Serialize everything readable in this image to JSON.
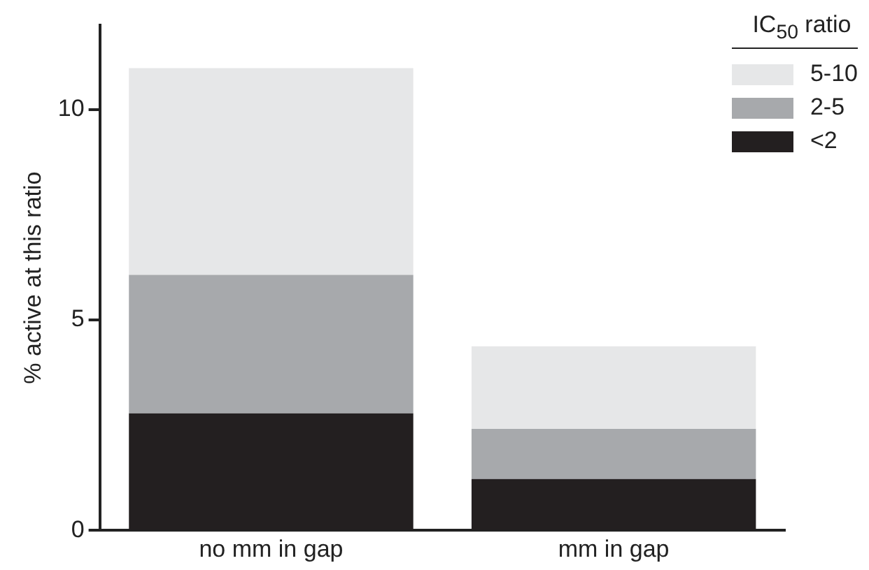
{
  "chart_data": {
    "type": "bar",
    "stacked": true,
    "categories": [
      "no mm in gap",
      "mm in gap"
    ],
    "ylabel": "% active at this ratio",
    "legend_title": "IC$_{50}$ ratio",
    "legend": "top right",
    "grid": false,
    "ylim": [
      0,
      12
    ],
    "yticks": [
      0,
      5,
      10
    ],
    "series": [
      {
        "name": "<2",
        "color": "#231f20",
        "values": [
          2.78,
          1.22
        ]
      },
      {
        "name": "2-5",
        "color": "#a7a9ac",
        "values": [
          3.29,
          1.19
        ]
      },
      {
        "name": "5-10",
        "color": "#e6e7e8",
        "values": [
          4.91,
          1.96
        ]
      }
    ]
  }
}
